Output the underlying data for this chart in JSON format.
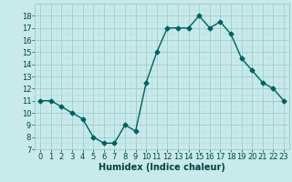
{
  "x": [
    0,
    1,
    2,
    3,
    4,
    5,
    6,
    7,
    8,
    9,
    10,
    11,
    12,
    13,
    14,
    15,
    16,
    17,
    18,
    19,
    20,
    21,
    22,
    23
  ],
  "y": [
    11,
    11,
    10.5,
    10,
    9.5,
    8,
    7.5,
    7.5,
    9,
    8.5,
    12.5,
    15,
    17,
    17,
    17,
    18,
    17,
    17.5,
    16.5,
    14.5,
    13.5,
    12.5,
    12,
    11
  ],
  "line_color": "#006060",
  "marker": "D",
  "marker_size": 2.5,
  "bg_color": "#c8eaea",
  "grid_minor_color": "#b8dede",
  "grid_major_color": "#a0cccc",
  "xlabel": "Humidex (Indice chaleur)",
  "ylim": [
    7,
    19
  ],
  "xlim": [
    -0.5,
    23.5
  ],
  "yticks": [
    7,
    8,
    9,
    10,
    11,
    12,
    13,
    14,
    15,
    16,
    17,
    18
  ],
  "xticks": [
    0,
    1,
    2,
    3,
    4,
    5,
    6,
    7,
    8,
    9,
    10,
    11,
    12,
    13,
    14,
    15,
    16,
    17,
    18,
    19,
    20,
    21,
    22,
    23
  ],
  "tick_label_fontsize": 6,
  "xlabel_fontsize": 7,
  "label_color": "#004444"
}
